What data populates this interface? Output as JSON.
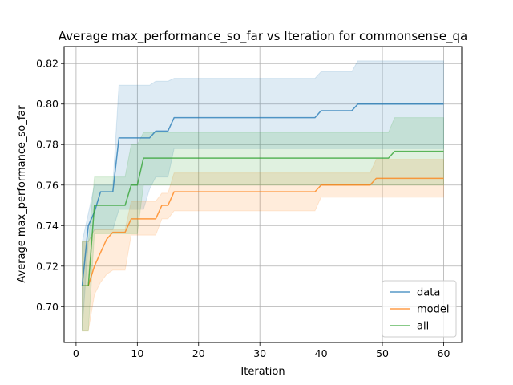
{
  "chart_data": {
    "type": "line",
    "title": "Average max_performance_so_far vs Iteration for commonsense_qa",
    "xlabel": "Iteration",
    "ylabel": "Average max_performance_so_far",
    "xlim": [
      -1.95,
      62.95
    ],
    "ylim": [
      0.6823,
      0.8284
    ],
    "xticks": [
      0,
      10,
      20,
      30,
      40,
      50,
      60
    ],
    "yticks": [
      0.7,
      0.72,
      0.74,
      0.76,
      0.78,
      0.8,
      0.82
    ],
    "grid": true,
    "legend_position": "bottom-right",
    "series": [
      {
        "name": "data",
        "color": "#1f77b4",
        "x": [
          1,
          2,
          3,
          4,
          5,
          6,
          7,
          8,
          9,
          10,
          11,
          12,
          13,
          14,
          15,
          16,
          17,
          18,
          19,
          20,
          21,
          22,
          23,
          24,
          25,
          26,
          27,
          28,
          29,
          30,
          31,
          32,
          33,
          34,
          35,
          36,
          37,
          38,
          39,
          40,
          41,
          42,
          43,
          44,
          45,
          46,
          47,
          48,
          49,
          50,
          51,
          52,
          53,
          54,
          55,
          56,
          57,
          58,
          59,
          60
        ],
        "y": [
          0.7103,
          0.74,
          0.7467,
          0.7567,
          0.7567,
          0.7567,
          0.7833,
          0.7833,
          0.7833,
          0.7833,
          0.7833,
          0.7833,
          0.7867,
          0.7867,
          0.7867,
          0.7933,
          0.7933,
          0.7933,
          0.7933,
          0.7933,
          0.7933,
          0.7933,
          0.7933,
          0.7933,
          0.7933,
          0.7933,
          0.7933,
          0.7933,
          0.7933,
          0.7933,
          0.7933,
          0.7933,
          0.7933,
          0.7933,
          0.7933,
          0.7933,
          0.7933,
          0.7933,
          0.7933,
          0.7967,
          0.7967,
          0.7967,
          0.7967,
          0.7967,
          0.7967,
          0.8,
          0.8,
          0.8,
          0.8,
          0.8,
          0.8,
          0.8,
          0.8,
          0.8,
          0.8,
          0.8,
          0.8,
          0.8,
          0.8,
          0.8
        ],
        "lower": [
          0.688,
          0.732,
          0.738,
          0.738,
          0.738,
          0.738,
          0.748,
          0.748,
          0.748,
          0.748,
          0.748,
          0.758,
          0.764,
          0.764,
          0.764,
          0.778,
          0.778,
          0.778,
          0.778,
          0.778,
          0.778,
          0.778,
          0.778,
          0.778,
          0.778,
          0.778,
          0.778,
          0.778,
          0.778,
          0.778,
          0.778,
          0.778,
          0.778,
          0.778,
          0.778,
          0.778,
          0.778,
          0.778,
          0.778,
          0.778,
          0.778,
          0.778,
          0.778,
          0.778,
          0.778,
          0.778,
          0.778,
          0.778,
          0.778,
          0.778,
          0.778,
          0.778,
          0.778,
          0.778,
          0.778,
          0.778,
          0.778,
          0.778,
          0.778,
          0.778
        ],
        "upper": [
          0.732,
          0.746,
          0.76,
          0.76,
          0.76,
          0.76,
          0.8093,
          0.8093,
          0.8093,
          0.8093,
          0.8093,
          0.8093,
          0.8113,
          0.8113,
          0.8113,
          0.8127,
          0.8127,
          0.8127,
          0.8127,
          0.8127,
          0.8127,
          0.8127,
          0.8127,
          0.8127,
          0.8127,
          0.8127,
          0.8127,
          0.8127,
          0.8127,
          0.8127,
          0.8127,
          0.8127,
          0.8127,
          0.8127,
          0.8127,
          0.8127,
          0.8127,
          0.8127,
          0.8127,
          0.816,
          0.816,
          0.816,
          0.816,
          0.816,
          0.816,
          0.8213,
          0.8213,
          0.8213,
          0.8213,
          0.8213,
          0.8213,
          0.8213,
          0.8213,
          0.8213,
          0.8213,
          0.8213,
          0.8213,
          0.8213,
          0.8213,
          0.8213
        ]
      },
      {
        "name": "model",
        "color": "#ff7f0e",
        "x": [
          1,
          2,
          3,
          4,
          5,
          6,
          7,
          8,
          9,
          10,
          11,
          12,
          13,
          14,
          15,
          16,
          17,
          18,
          19,
          20,
          21,
          22,
          23,
          24,
          25,
          26,
          27,
          28,
          29,
          30,
          31,
          32,
          33,
          34,
          35,
          36,
          37,
          38,
          39,
          40,
          41,
          42,
          43,
          44,
          45,
          46,
          47,
          48,
          49,
          50,
          51,
          52,
          53,
          54,
          55,
          56,
          57,
          58,
          59,
          60
        ],
        "y": [
          0.7103,
          0.7103,
          0.72,
          0.7267,
          0.7333,
          0.7367,
          0.7367,
          0.7367,
          0.7433,
          0.7433,
          0.7433,
          0.7433,
          0.7433,
          0.75,
          0.75,
          0.7567,
          0.7567,
          0.7567,
          0.7567,
          0.7567,
          0.7567,
          0.7567,
          0.7567,
          0.7567,
          0.7567,
          0.7567,
          0.7567,
          0.7567,
          0.7567,
          0.7567,
          0.7567,
          0.7567,
          0.7567,
          0.7567,
          0.7567,
          0.7567,
          0.7567,
          0.7567,
          0.7567,
          0.76,
          0.76,
          0.76,
          0.76,
          0.76,
          0.76,
          0.76,
          0.76,
          0.76,
          0.7633,
          0.7633,
          0.7633,
          0.7633,
          0.7633,
          0.7633,
          0.7633,
          0.7633,
          0.7633,
          0.7633,
          0.7633,
          0.7633
        ],
        "lower": [
          0.688,
          0.688,
          0.706,
          0.712,
          0.716,
          0.718,
          0.718,
          0.718,
          0.7353,
          0.7353,
          0.7353,
          0.7353,
          0.7353,
          0.7433,
          0.7433,
          0.7473,
          0.7473,
          0.7473,
          0.7473,
          0.7473,
          0.7473,
          0.7473,
          0.7473,
          0.7473,
          0.7473,
          0.7473,
          0.7473,
          0.7473,
          0.7473,
          0.7473,
          0.7473,
          0.7473,
          0.7473,
          0.7473,
          0.7473,
          0.7473,
          0.7473,
          0.7473,
          0.7473,
          0.754,
          0.754,
          0.754,
          0.754,
          0.754,
          0.754,
          0.754,
          0.754,
          0.754,
          0.754,
          0.754,
          0.754,
          0.754,
          0.754,
          0.754,
          0.754,
          0.754,
          0.754,
          0.754,
          0.754,
          0.754
        ],
        "upper": [
          0.732,
          0.732,
          0.738,
          0.738,
          0.738,
          0.738,
          0.738,
          0.738,
          0.752,
          0.752,
          0.752,
          0.752,
          0.752,
          0.756,
          0.756,
          0.766,
          0.766,
          0.766,
          0.766,
          0.766,
          0.766,
          0.766,
          0.766,
          0.766,
          0.766,
          0.766,
          0.766,
          0.766,
          0.766,
          0.766,
          0.766,
          0.766,
          0.766,
          0.766,
          0.766,
          0.766,
          0.766,
          0.766,
          0.766,
          0.766,
          0.766,
          0.766,
          0.766,
          0.766,
          0.766,
          0.766,
          0.766,
          0.766,
          0.7727,
          0.7727,
          0.7727,
          0.7727,
          0.7727,
          0.7727,
          0.7727,
          0.7727,
          0.7727,
          0.7727,
          0.7727,
          0.7727
        ]
      },
      {
        "name": "all",
        "color": "#2ca02c",
        "x": [
          1,
          2,
          3,
          4,
          5,
          6,
          7,
          8,
          9,
          10,
          11,
          12,
          13,
          14,
          15,
          16,
          17,
          18,
          19,
          20,
          21,
          22,
          23,
          24,
          25,
          26,
          27,
          28,
          29,
          30,
          31,
          32,
          33,
          34,
          35,
          36,
          37,
          38,
          39,
          40,
          41,
          42,
          43,
          44,
          45,
          46,
          47,
          48,
          49,
          50,
          51,
          52,
          53,
          54,
          55,
          56,
          57,
          58,
          59,
          60
        ],
        "y": [
          0.7103,
          0.7103,
          0.75,
          0.75,
          0.75,
          0.75,
          0.75,
          0.75,
          0.76,
          0.76,
          0.7733,
          0.7733,
          0.7733,
          0.7733,
          0.7733,
          0.7733,
          0.7733,
          0.7733,
          0.7733,
          0.7733,
          0.7733,
          0.7733,
          0.7733,
          0.7733,
          0.7733,
          0.7733,
          0.7733,
          0.7733,
          0.7733,
          0.7733,
          0.7733,
          0.7733,
          0.7733,
          0.7733,
          0.7733,
          0.7733,
          0.7733,
          0.7733,
          0.7733,
          0.7733,
          0.7733,
          0.7733,
          0.7733,
          0.7733,
          0.7733,
          0.7733,
          0.7733,
          0.7733,
          0.7733,
          0.7733,
          0.7733,
          0.7767,
          0.7767,
          0.7767,
          0.7767,
          0.7767,
          0.7767,
          0.7767,
          0.7767,
          0.7767
        ],
        "lower": [
          0.688,
          0.688,
          0.736,
          0.736,
          0.736,
          0.736,
          0.736,
          0.736,
          0.736,
          0.736,
          0.76,
          0.76,
          0.76,
          0.76,
          0.76,
          0.76,
          0.76,
          0.76,
          0.76,
          0.76,
          0.76,
          0.76,
          0.76,
          0.76,
          0.76,
          0.76,
          0.76,
          0.76,
          0.76,
          0.76,
          0.76,
          0.76,
          0.76,
          0.76,
          0.76,
          0.76,
          0.76,
          0.76,
          0.76,
          0.76,
          0.76,
          0.76,
          0.76,
          0.76,
          0.76,
          0.76,
          0.76,
          0.76,
          0.76,
          0.76,
          0.76,
          0.76,
          0.76,
          0.76,
          0.76,
          0.76,
          0.76,
          0.76,
          0.76,
          0.76
        ],
        "upper": [
          0.732,
          0.732,
          0.764,
          0.764,
          0.764,
          0.764,
          0.764,
          0.764,
          0.78,
          0.78,
          0.786,
          0.786,
          0.786,
          0.786,
          0.786,
          0.786,
          0.786,
          0.786,
          0.786,
          0.786,
          0.786,
          0.786,
          0.786,
          0.786,
          0.786,
          0.786,
          0.786,
          0.786,
          0.786,
          0.786,
          0.786,
          0.786,
          0.786,
          0.786,
          0.786,
          0.786,
          0.786,
          0.786,
          0.786,
          0.786,
          0.786,
          0.786,
          0.786,
          0.786,
          0.786,
          0.786,
          0.786,
          0.786,
          0.786,
          0.786,
          0.786,
          0.7933,
          0.7933,
          0.7933,
          0.7933,
          0.7933,
          0.7933,
          0.7933,
          0.7933,
          0.7933
        ]
      }
    ]
  }
}
